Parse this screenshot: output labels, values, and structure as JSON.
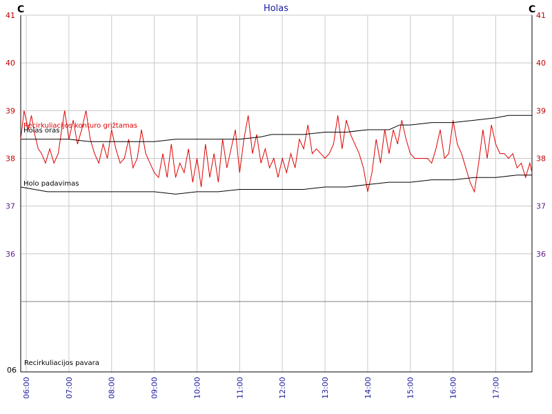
{
  "chart_data": {
    "type": "line",
    "title": "Holas",
    "unit_left": "C",
    "unit_right": "C",
    "yticks": [
      36,
      37,
      38,
      39,
      40,
      41
    ],
    "ylim": [
      35,
      41
    ],
    "xlim": [
      5.87,
      17.85
    ],
    "xticks": [
      "06:00",
      "07:00",
      "08:00",
      "09:00",
      "10:00",
      "11:00",
      "12:00",
      "13:00",
      "14:00",
      "15:00",
      "16:00",
      "17:00"
    ],
    "grid": true,
    "lower_panel": {
      "label": "Recirkuliacijos pavara",
      "axis_label": "06"
    },
    "series": [
      {
        "name": "Recirkuliacijos konturo grįžtamas",
        "color": "#dd0000",
        "x": [
          5.87,
          5.95,
          6.05,
          6.12,
          6.2,
          6.28,
          6.36,
          6.45,
          6.55,
          6.65,
          6.75,
          6.83,
          6.9,
          7.0,
          7.1,
          7.2,
          7.3,
          7.4,
          7.5,
          7.6,
          7.7,
          7.8,
          7.9,
          8.0,
          8.1,
          8.2,
          8.3,
          8.4,
          8.5,
          8.6,
          8.7,
          8.8,
          8.9,
          9.0,
          9.1,
          9.2,
          9.3,
          9.4,
          9.5,
          9.6,
          9.7,
          9.8,
          9.9,
          10.0,
          10.1,
          10.2,
          10.3,
          10.4,
          10.5,
          10.6,
          10.7,
          10.8,
          10.9,
          11.0,
          11.1,
          11.2,
          11.3,
          11.4,
          11.5,
          11.6,
          11.7,
          11.8,
          11.9,
          12.0,
          12.1,
          12.2,
          12.3,
          12.4,
          12.5,
          12.6,
          12.7,
          12.8,
          12.9,
          13.0,
          13.1,
          13.2,
          13.3,
          13.4,
          13.5,
          13.6,
          13.7,
          13.8,
          13.9,
          14.0,
          14.1,
          14.2,
          14.3,
          14.4,
          14.5,
          14.6,
          14.7,
          14.8,
          14.9,
          15.0,
          15.1,
          15.2,
          15.3,
          15.4,
          15.5,
          15.6,
          15.7,
          15.8,
          15.9,
          16.0,
          16.1,
          16.2,
          16.3,
          16.4,
          16.5,
          16.6,
          16.7,
          16.8,
          16.9,
          17.0,
          17.1,
          17.2,
          17.3,
          17.4,
          17.5,
          17.6,
          17.7,
          17.8,
          17.85
        ],
        "values": [
          38.4,
          39.0,
          38.6,
          38.9,
          38.5,
          38.2,
          38.1,
          37.9,
          38.2,
          37.9,
          38.1,
          38.6,
          39.0,
          38.4,
          38.8,
          38.3,
          38.6,
          39.0,
          38.4,
          38.1,
          37.9,
          38.3,
          38.0,
          38.6,
          38.2,
          37.9,
          38.0,
          38.4,
          37.8,
          38.0,
          38.6,
          38.1,
          37.9,
          37.7,
          37.6,
          38.1,
          37.6,
          38.3,
          37.6,
          37.9,
          37.7,
          38.2,
          37.5,
          38.0,
          37.4,
          38.3,
          37.6,
          38.1,
          37.5,
          38.4,
          37.8,
          38.2,
          38.6,
          37.7,
          38.4,
          38.9,
          38.1,
          38.5,
          37.9,
          38.2,
          37.8,
          38.0,
          37.6,
          38.0,
          37.7,
          38.1,
          37.8,
          38.4,
          38.2,
          38.7,
          38.1,
          38.2,
          38.1,
          38.0,
          38.1,
          38.3,
          38.9,
          38.2,
          38.8,
          38.5,
          38.3,
          38.1,
          37.8,
          37.3,
          37.7,
          38.4,
          37.9,
          38.6,
          38.1,
          38.6,
          38.3,
          38.8,
          38.4,
          38.1,
          38.0,
          38.0,
          38.0,
          38.0,
          37.9,
          38.2,
          38.6,
          38.0,
          38.1,
          38.8,
          38.3,
          38.1,
          37.8,
          37.5,
          37.3,
          37.9,
          38.6,
          38.0,
          38.7,
          38.3,
          38.1,
          38.1,
          38.0,
          38.1,
          37.8,
          37.9,
          37.6,
          37.9,
          37.7
        ]
      },
      {
        "name": "Holas oras",
        "color": "#000000",
        "x": [
          5.87,
          6.5,
          7.0,
          7.5,
          8.0,
          8.5,
          9.0,
          9.5,
          10.0,
          10.5,
          11.0,
          11.5,
          11.75,
          12.0,
          12.5,
          13.0,
          13.5,
          14.0,
          14.5,
          14.75,
          15.0,
          15.5,
          16.0,
          16.5,
          17.0,
          17.3,
          17.85
        ],
        "values": [
          38.4,
          38.4,
          38.4,
          38.35,
          38.35,
          38.35,
          38.35,
          38.4,
          38.4,
          38.4,
          38.4,
          38.45,
          38.5,
          38.5,
          38.5,
          38.55,
          38.55,
          38.6,
          38.6,
          38.7,
          38.7,
          38.75,
          38.75,
          38.8,
          38.85,
          38.9,
          38.9
        ]
      },
      {
        "name": "Holo padavimas",
        "color": "#000000",
        "x": [
          5.87,
          6.5,
          7.0,
          7.5,
          8.0,
          8.5,
          9.0,
          9.5,
          10.0,
          10.5,
          11.0,
          11.5,
          12.0,
          12.5,
          13.0,
          13.5,
          14.0,
          14.5,
          15.0,
          15.5,
          16.0,
          16.5,
          17.0,
          17.5,
          17.85
        ],
        "values": [
          37.4,
          37.3,
          37.3,
          37.3,
          37.3,
          37.3,
          37.3,
          37.25,
          37.3,
          37.3,
          37.35,
          37.35,
          37.35,
          37.35,
          37.4,
          37.4,
          37.45,
          37.5,
          37.5,
          37.55,
          37.55,
          37.6,
          37.6,
          37.65,
          37.65
        ]
      }
    ]
  }
}
